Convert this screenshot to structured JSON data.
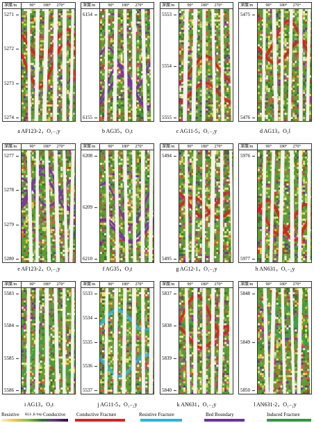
{
  "depth_label": "深度/m",
  "deg": [
    "90°",
    "180°",
    "270°"
  ],
  "panels": [
    {
      "id": "a",
      "caption": "a AF123-2，O₁₋₂y",
      "depths": [
        "5271",
        "5272",
        "5273",
        "5274"
      ],
      "feature": "conductive"
    },
    {
      "id": "b",
      "caption": "b AG35，O₃t",
      "depths": [
        "6154",
        "6155"
      ],
      "feature": "bed"
    },
    {
      "id": "c",
      "caption": "c AG11-5，O₁₋₂y",
      "depths": [
        "5553",
        "5554",
        "5555"
      ],
      "feature": "conductive"
    },
    {
      "id": "d",
      "caption": "d AG13，O₂l",
      "depths": [
        "5475",
        "5476"
      ],
      "feature": "conductive"
    },
    {
      "id": "e",
      "caption": "e AF123-2，O₁₋₂y",
      "depths": [
        "5277",
        "5278",
        "5279",
        "5280"
      ],
      "feature": "bed"
    },
    {
      "id": "f",
      "caption": "f AG35，O₃t",
      "depths": [
        "6208",
        "6209",
        "6210"
      ],
      "feature": "bed"
    },
    {
      "id": "g",
      "caption": "g AG12-1，O₁₋₂y",
      "depths": [
        "5494",
        "5495"
      ],
      "feature": "conductive"
    },
    {
      "id": "h",
      "caption": "h AN631，O₁₋₂y",
      "depths": [
        "5976",
        "5977"
      ],
      "feature": "conductive"
    },
    {
      "id": "i",
      "caption": "i AG13，O₃t",
      "depths": [
        "5583",
        "5584",
        "5585",
        "5586"
      ],
      "feature": "induced"
    },
    {
      "id": "j",
      "caption": "j AG11-5，O₁₋₂y",
      "depths": [
        "5533",
        "5534",
        "5535",
        "5536",
        "5537"
      ],
      "feature": "resistive"
    },
    {
      "id": "k",
      "caption": "k AN631，O₁₋₂y",
      "depths": [
        "5837",
        "5838",
        "5839",
        "5840"
      ],
      "feature": "conductive"
    },
    {
      "id": "l",
      "caption": "l AN631-2，O₁₋₂y",
      "depths": [
        "5848",
        "5849",
        "5850"
      ],
      "feature": "induced"
    }
  ],
  "legend": {
    "scale_left": "Resistive",
    "scale_mid": "RLS ,R·Imp",
    "scale_right": "Conductive",
    "items": [
      {
        "label": "Conductive Fracture",
        "color": "#e02020"
      },
      {
        "label": "Resistive Fracture",
        "color": "#20b8e0"
      },
      {
        "label": "Bed Boundary",
        "color": "#7030a0"
      },
      {
        "label": "Induced Fracture",
        "color": "#2e9a3a"
      }
    ]
  }
}
